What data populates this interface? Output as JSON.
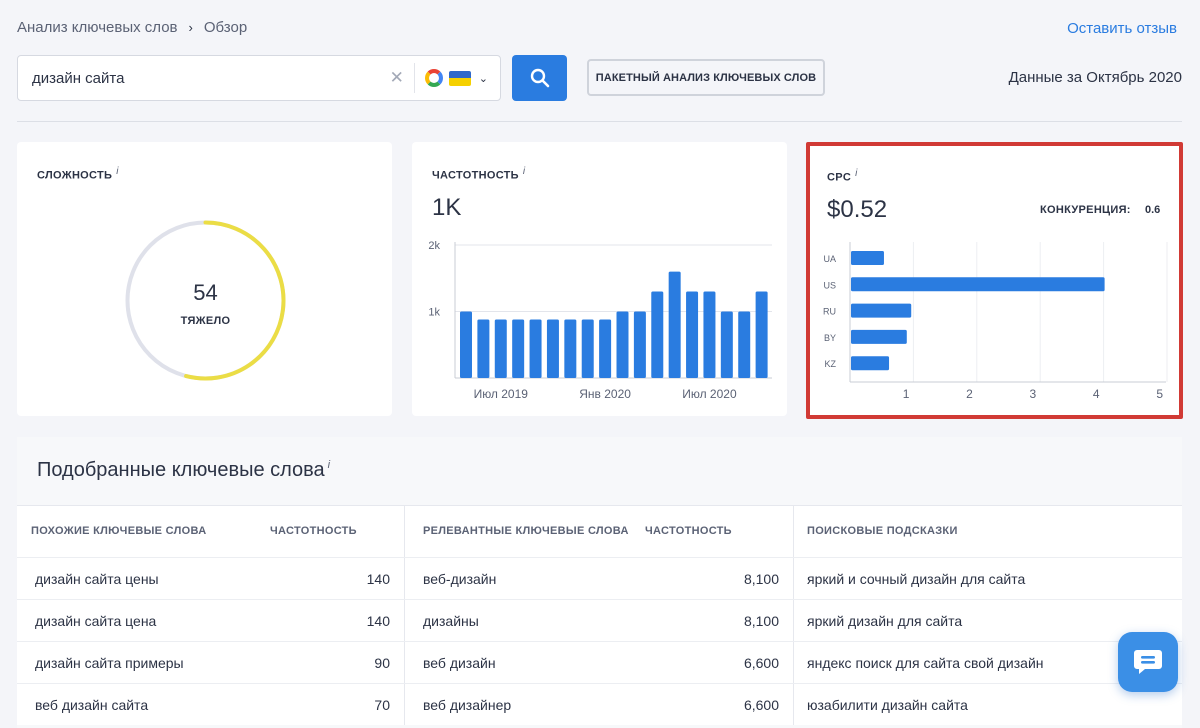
{
  "breadcrumb": {
    "parent": "Анализ ключевых слов",
    "current": "Обзор"
  },
  "feedback_link": "Оставить отзыв",
  "search": {
    "value": "дизайн сайта",
    "engine_icon": "google-icon",
    "country_flag": "ukraine-flag"
  },
  "bulk_button": "ПАКЕТНЫЙ АНАЛИЗ КЛЮЧЕВЫХ СЛОВ",
  "data_date": "Данные за Октябрь 2020",
  "difficulty": {
    "title": "СЛОЖНОСТЬ",
    "info": "i",
    "value": "54",
    "label": "ТЯЖЕЛО",
    "score": 54,
    "max": 100,
    "fill_color": "#ebdd45",
    "track_color": "#dfe1ea"
  },
  "volume": {
    "title": "ЧАСТОТНОСТЬ",
    "info": "i",
    "value": "1K"
  },
  "cpc": {
    "title": "CPC",
    "info": "i",
    "value": "$0.52",
    "competition_label": "КОНКУРЕНЦИЯ:",
    "competition_value": "0.6"
  },
  "chart_data": [
    {
      "type": "bar",
      "x": [
        "2019-05",
        "2019-06",
        "2019-07",
        "2019-08",
        "2019-09",
        "2019-10",
        "2019-11",
        "2019-12",
        "2020-01",
        "2020-02",
        "2020-03",
        "2020-04",
        "2020-05",
        "2020-06",
        "2020-07",
        "2020-08",
        "2020-09",
        "2020-10"
      ],
      "values": [
        1000,
        880,
        880,
        880,
        880,
        880,
        880,
        880,
        880,
        1000,
        1000,
        1300,
        1600,
        1300,
        1300,
        1000,
        1000,
        1300
      ],
      "y_ticks": [
        "2k",
        "1k"
      ],
      "x_ticks": [
        "Июл 2019",
        "Янв 2020",
        "Июл 2020"
      ],
      "ylim": [
        0,
        2000
      ],
      "grid": true,
      "color": "#2a7ce0"
    },
    {
      "type": "bar",
      "orientation": "horizontal",
      "categories": [
        "UA",
        "US",
        "RU",
        "BY",
        "KZ"
      ],
      "values": [
        0.52,
        4.0,
        0.95,
        0.88,
        0.6
      ],
      "x_ticks": [
        "1",
        "2",
        "3",
        "4",
        "5"
      ],
      "xlim": [
        0,
        5
      ],
      "grid": true,
      "color": "#2a7ce0"
    }
  ],
  "keywords": {
    "title": "Подобранные ключевые слова",
    "info": "i",
    "headers": {
      "similar": "ПОХОЖИЕ КЛЮЧЕВЫЕ СЛОВА",
      "similar_volume": "ЧАСТОТНОСТЬ",
      "related": "РЕЛЕВАНТНЫЕ КЛЮЧЕВЫЕ СЛОВА",
      "related_volume": "ЧАСТОТНОСТЬ",
      "suggestions": "ПОИСКОВЫЕ ПОДСКАЗКИ"
    },
    "rows": [
      {
        "similar": "дизайн сайта цены",
        "similar_volume": "140",
        "related": "веб-дизайн",
        "related_volume": "8,100",
        "suggestion": "яркий и сочный дизайн для сайта"
      },
      {
        "similar": "дизайн сайта цена",
        "similar_volume": "140",
        "related": "дизайны",
        "related_volume": "8,100",
        "suggestion": "яркий дизайн для сайта"
      },
      {
        "similar": "дизайн сайта примеры",
        "similar_volume": "90",
        "related": "веб дизайн",
        "related_volume": "6,600",
        "suggestion": "яндекс поиск для сайта свой дизайн"
      },
      {
        "similar": "веб дизайн сайта",
        "similar_volume": "70",
        "related": "веб дизайнер",
        "related_volume": "6,600",
        "suggestion": "юзабилити дизайн сайта"
      }
    ]
  }
}
